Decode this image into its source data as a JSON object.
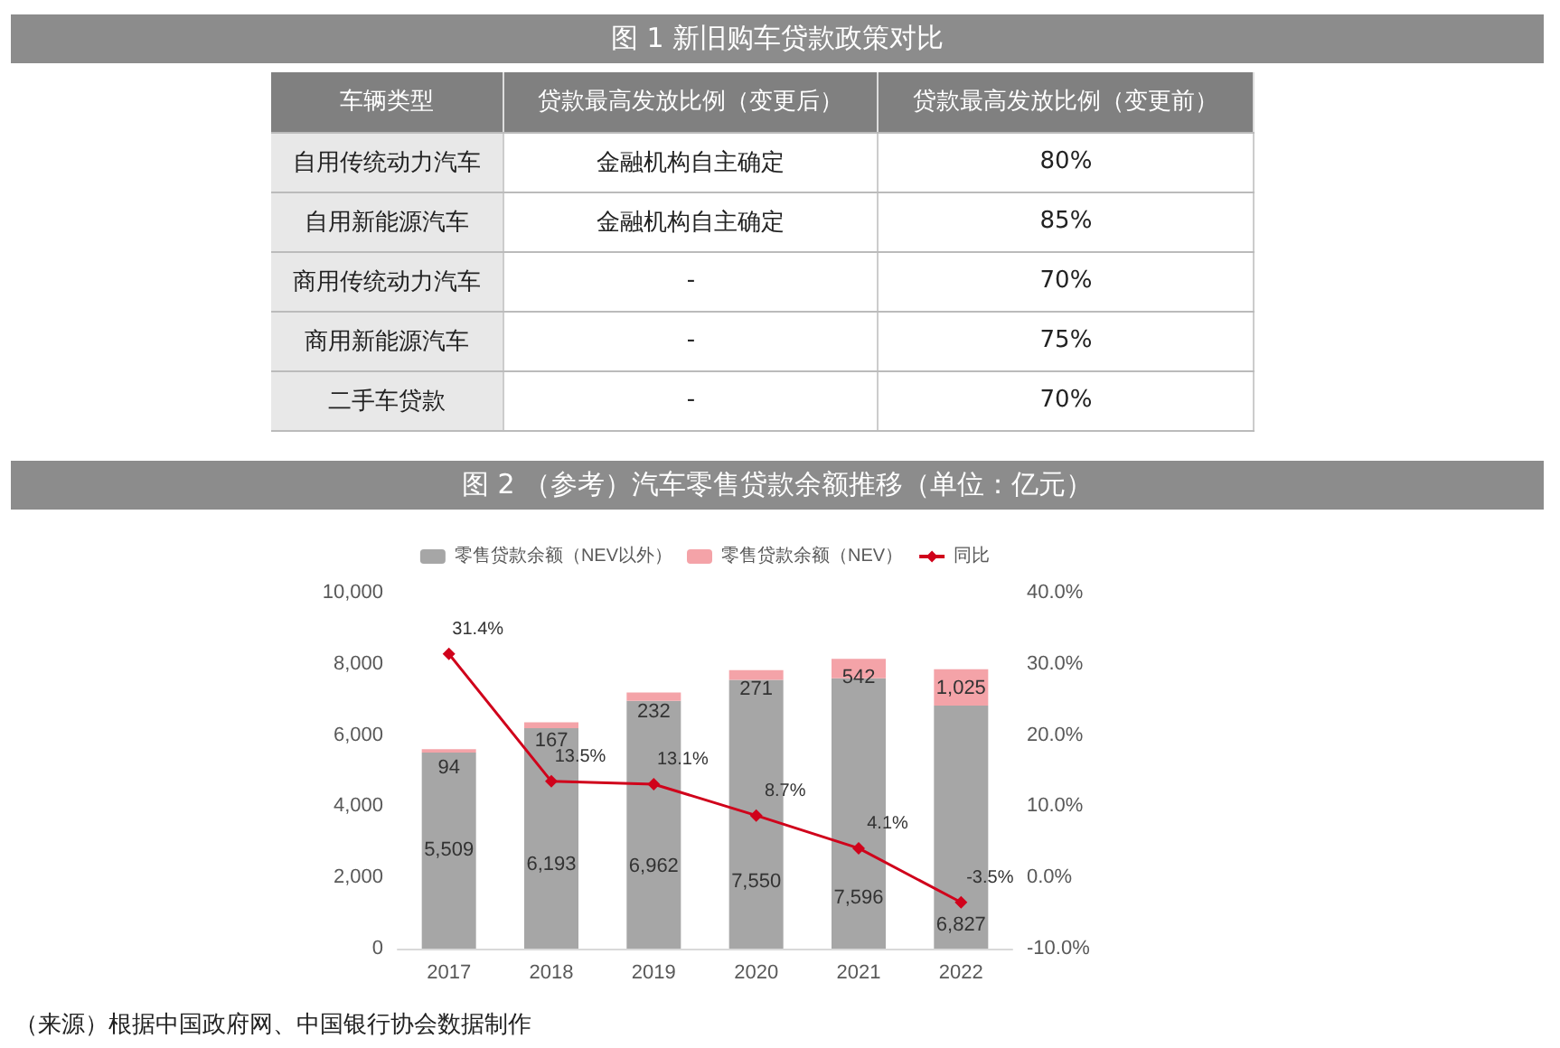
{
  "chart_data": [
    {
      "type": "other",
      "title": "图 1 新旧购车贷款政策对比",
      "ylabel": "车辆类型",
      "categories": [
        "贷款最高发放比例（变更后）",
        "贷款最高发放比例（变更前）"
      ],
      "y_categories": [
        "自用传统动力汽车",
        "自用新能源汽车",
        "商用传统动力汽车",
        "商用新能源汽车",
        "二手车贷款"
      ],
      "cell_labels": [
        [
          "金融机构自主确定",
          "80%"
        ],
        [
          "金融机构自主确定",
          "85%"
        ],
        [
          "-",
          "70%"
        ],
        [
          "-",
          "75%"
        ],
        [
          "-",
          "70%"
        ]
      ]
    },
    {
      "type": "bar",
      "title": "图 2 （参考）汽车零售贷款余额推移（单位：亿元）",
      "stacked": true,
      "legend": "top",
      "categories": [
        "2017",
        "2018",
        "2019",
        "2020",
        "2021",
        "2022"
      ],
      "series": [
        {
          "name": "零售贷款余额（NEV以外）",
          "color": "#a6a6a6",
          "values": [
            5509,
            6193,
            6962,
            7550,
            7596,
            6827
          ],
          "value_labels": [
            "5,509",
            "6,193",
            "6,962",
            "7,550",
            "7,596",
            "6,827"
          ]
        },
        {
          "name": "零售贷款余额（NEV）",
          "color": "#f4a3a8",
          "values": [
            94,
            167,
            232,
            271,
            542,
            1025
          ],
          "value_labels": [
            "94",
            "167",
            "232",
            "271",
            "542",
            "1,025"
          ]
        },
        {
          "name": "同比",
          "type": "line",
          "axis": "y2",
          "color": "#d0021b",
          "marker": "diamond",
          "values": [
            31.4,
            13.5,
            13.1,
            8.7,
            4.1,
            -3.5
          ],
          "value_labels": [
            "31.4%",
            "13.5%",
            "13.1%",
            "8.7%",
            "4.1%",
            "-3.5%"
          ]
        }
      ],
      "ylim": [
        0,
        10000
      ],
      "yticks": [
        0,
        {
          "value": 2000,
          "label": "2,000"
        },
        {
          "value": 4000,
          "label": "4,000"
        },
        {
          "value": 6000,
          "label": "6,000"
        },
        {
          "value": 8000,
          "label": "8,000"
        },
        {
          "value": 10000,
          "label": "10,000"
        }
      ],
      "y2lim": [
        -10,
        40
      ],
      "y2ticks": [
        {
          "value": -10,
          "label": "-10.0%"
        },
        {
          "value": 0,
          "label": "0.0%"
        },
        {
          "value": 10,
          "label": "10.0%"
        },
        {
          "value": 20,
          "label": "20.0%"
        },
        {
          "value": 30,
          "label": "30.0%"
        },
        {
          "value": 40,
          "label": "40.0%"
        }
      ],
      "annotations": [
        "（来源）根据中国政府网、中国银行协会数据制作"
      ]
    }
  ]
}
